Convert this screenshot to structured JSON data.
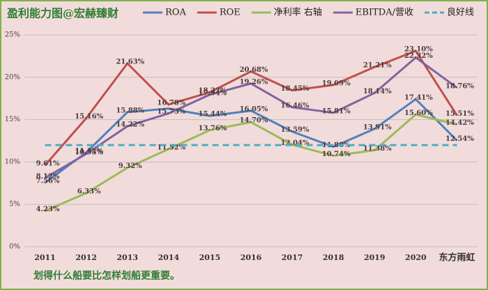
{
  "chart_data": {
    "type": "line",
    "title": "盈利能力图@宏赫臻财",
    "footnote": "划得什么船要比怎样划船更重要。",
    "categories": [
      "2011",
      "2012",
      "2013",
      "2014",
      "2015",
      "2016",
      "2017",
      "2018",
      "2019",
      "2020",
      "东方雨虹"
    ],
    "ylim": [
      0,
      25
    ],
    "yticks": [
      {
        "value": 0,
        "label": "0%"
      },
      {
        "value": 5,
        "label": "5%"
      },
      {
        "value": 10,
        "label": "10%"
      },
      {
        "value": 15,
        "label": "15%"
      },
      {
        "value": 20,
        "label": "20%"
      },
      {
        "value": 25,
        "label": "25%"
      }
    ],
    "grid": true,
    "series": [
      {
        "name": "ROA",
        "color": "#4f81bd",
        "values": [
          7.56,
          11.12,
          15.88,
          16.3,
          15.44,
          16.05,
          13.59,
          11.8,
          13.91,
          17.41,
          12.54
        ],
        "value_labels": [
          "7.56%",
          "11.12%",
          "15.88%",
          null,
          "15.44%",
          "16.05%",
          "13.59%",
          "11.80%",
          "13.91%",
          "17.41%",
          "12.54%"
        ]
      },
      {
        "name": "ROE",
        "color": "#c0504d",
        "values": [
          9.61,
          15.16,
          21.63,
          16.78,
          18.22,
          20.68,
          18.45,
          19.09,
          21.21,
          23.1,
          15.51
        ],
        "value_labels": [
          "9.61%",
          "15.16%",
          "21.63%",
          "16.78%",
          "18.22%",
          "20.68%",
          "18.45%",
          "19.09%",
          "21.21%",
          "23.10%",
          "15.51%"
        ]
      },
      {
        "name": "净利率 右轴",
        "color": "#9bbb59",
        "values": [
          4.23,
          6.33,
          9.32,
          11.52,
          13.76,
          14.7,
          12.04,
          10.74,
          11.38,
          15.6,
          14.42
        ],
        "value_labels": [
          "4.23%",
          "6.33%",
          "9.32%",
          "11.52%",
          "13.76%",
          "14.70%",
          "12.04%",
          "10.74%",
          "11.38%",
          "15.60%",
          "14.42%"
        ]
      },
      {
        "name": "EBITDA/营收",
        "color": "#8064a2",
        "values": [
          8.12,
          10.95,
          14.22,
          15.73,
          17.94,
          19.26,
          16.46,
          15.81,
          18.14,
          22.32,
          18.76
        ],
        "value_labels": [
          "8.12%",
          "10.95%",
          "14.22%",
          "15.73%",
          "17.94%",
          "19.26%",
          "16.46%",
          "15.81%",
          "18.14%",
          "22.32%",
          "18.76%"
        ]
      },
      {
        "name": "良好线",
        "color": "#4bacc6",
        "dashed": true,
        "values": [
          12,
          12,
          12,
          12,
          12,
          12,
          12,
          12,
          12,
          12,
          12
        ]
      }
    ]
  }
}
